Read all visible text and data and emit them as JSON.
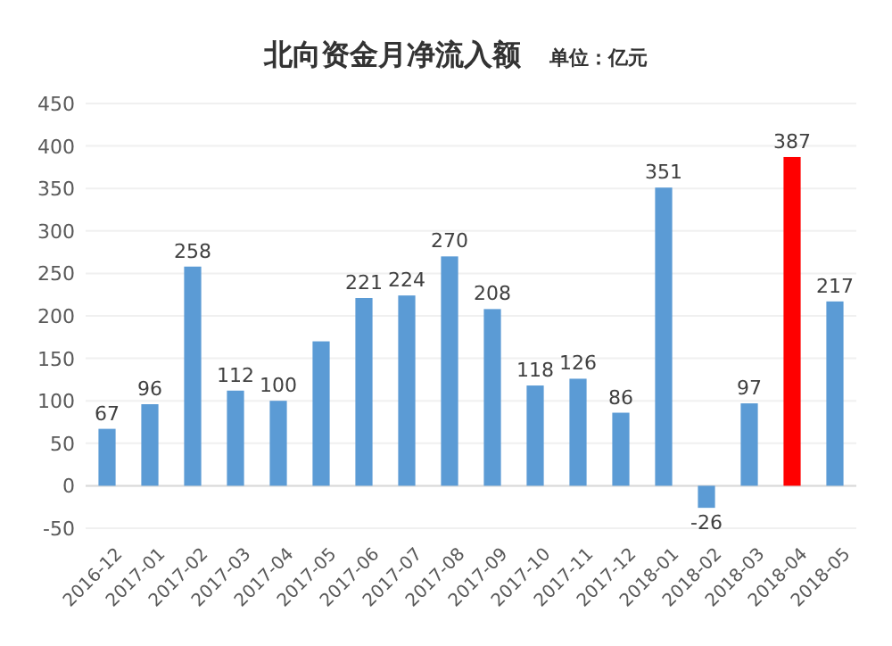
{
  "chart_data": {
    "type": "bar",
    "title": "北向资金月净流入额",
    "subtitle": "单位：亿元",
    "categories": [
      "2016-12",
      "2017-01",
      "2017-02",
      "2017-03",
      "2017-04",
      "2017-05",
      "2017-06",
      "2017-07",
      "2017-08",
      "2017-09",
      "2017-10",
      "2017-11",
      "2017-12",
      "2018-01",
      "2018-02",
      "2018-03",
      "2018-04",
      "2018-05"
    ],
    "values": [
      67,
      96,
      258,
      112,
      100,
      170,
      221,
      224,
      270,
      208,
      118,
      126,
      86,
      351,
      -26,
      97,
      387,
      217
    ],
    "value_labels": [
      "67",
      "96",
      "258",
      "112",
      "100",
      null,
      "221",
      "224",
      "270",
      "208",
      "118",
      "126",
      "86",
      "351",
      "-26",
      "97",
      "387",
      "217"
    ],
    "colors": [
      "#5b9bd5",
      "#5b9bd5",
      "#5b9bd5",
      "#5b9bd5",
      "#5b9bd5",
      "#5b9bd5",
      "#5b9bd5",
      "#5b9bd5",
      "#5b9bd5",
      "#5b9bd5",
      "#5b9bd5",
      "#5b9bd5",
      "#5b9bd5",
      "#5b9bd5",
      "#5b9bd5",
      "#5b9bd5",
      "#ff0000",
      "#5b9bd5"
    ],
    "ylim": [
      -50,
      450
    ],
    "yticks": [
      -50,
      0,
      50,
      100,
      150,
      200,
      250,
      300,
      350,
      400,
      450
    ],
    "grid": "y"
  }
}
